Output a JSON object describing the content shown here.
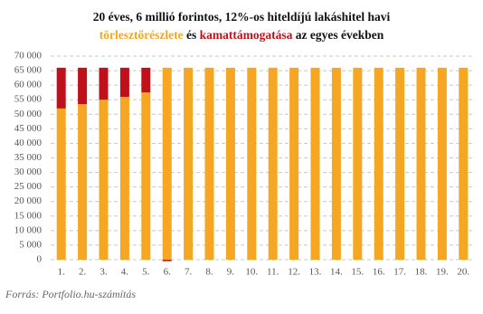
{
  "chart_data": {
    "type": "stacked_bar",
    "title": "20 éves, 6 millió forintos, 12%-os hiteldíjú lakáshitel havi",
    "title_words": [
      "és",
      "az egyes években"
    ],
    "source": "Forrás: Portfolio.hu-számítás",
    "categories": [
      "1.",
      "2.",
      "3.",
      "4.",
      "5.",
      "6.",
      "7.",
      "8.",
      "9.",
      "10.",
      "11.",
      "12.",
      "13.",
      "14.",
      "15.",
      "16.",
      "17.",
      "18.",
      "19.",
      "20."
    ],
    "series": [
      {
        "name": "törlesztőrészlete",
        "color": "#f5a623",
        "values": [
          52000,
          53500,
          55000,
          56000,
          57500,
          66000,
          66000,
          66000,
          66000,
          66000,
          66000,
          66000,
          66000,
          66000,
          66000,
          66000,
          66000,
          66000,
          66000,
          66000
        ]
      },
      {
        "name": "kamattámogatása",
        "color": "#c0101a",
        "values": [
          14000,
          12500,
          11000,
          10000,
          8500,
          -500,
          0,
          0,
          0,
          0,
          0,
          0,
          0,
          0,
          0,
          0,
          0,
          0,
          0,
          0
        ]
      }
    ],
    "ylim": [
      0,
      70000
    ],
    "yticks": [
      0,
      {
        "value": 5000,
        "label": "5 000"
      },
      {
        "value": 10000,
        "label": "10 000"
      },
      {
        "value": 15000,
        "label": "15 000"
      },
      {
        "value": 20000,
        "label": "20 000"
      },
      {
        "value": 25000,
        "label": "25 000"
      },
      {
        "value": 30000,
        "label": "30 000"
      },
      {
        "value": 35000,
        "label": "35 000"
      },
      {
        "value": 40000,
        "label": "40 000"
      },
      {
        "value": 45000,
        "label": "45 000"
      },
      {
        "value": 50000,
        "label": "50 000"
      },
      {
        "value": 55000,
        "label": "55 000"
      },
      {
        "value": 60000,
        "label": "60 000"
      },
      {
        "value": 65000,
        "label": "65 000"
      },
      {
        "value": 70000,
        "label": "70 000"
      }
    ],
    "grid": true
  }
}
